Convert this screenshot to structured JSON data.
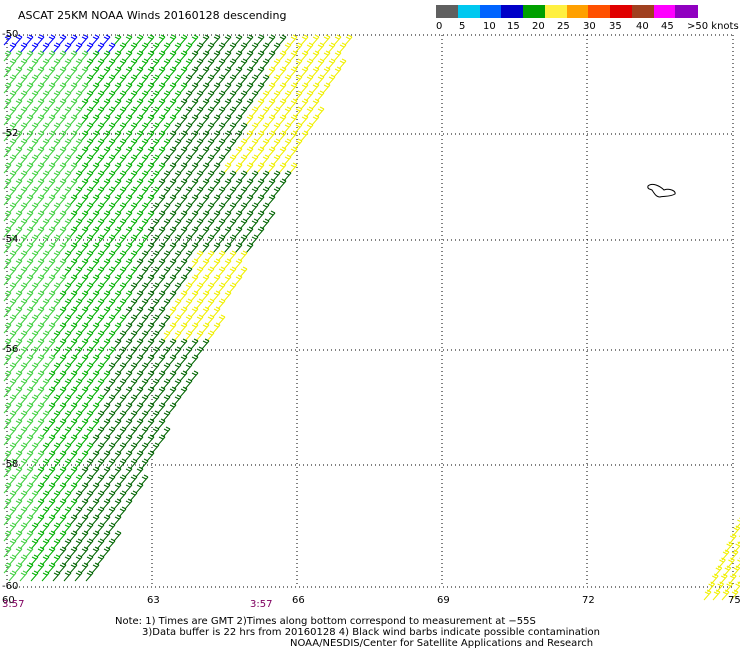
{
  "title": "ASCAT 25KM NOAA Winds 20160128 descending",
  "legend": {
    "labels": [
      "0",
      "5",
      "10",
      "15",
      "20",
      "25",
      "30",
      "35",
      "40",
      "45",
      ">50 knots"
    ],
    "colors": [
      "#606060",
      "#00c8f0",
      "#0064ff",
      "#0000c8",
      "#00a000",
      "#fff040",
      "#ffa000",
      "#ff5000",
      "#e00000",
      "#a04020",
      "#ff00ff",
      "#9000c0"
    ]
  },
  "axes": {
    "x_ticks": [
      "60",
      "63",
      "66",
      "69",
      "72",
      "75"
    ],
    "y_ticks": [
      "-50",
      "-52",
      "-54",
      "-56",
      "-58",
      "-60"
    ]
  },
  "times": [
    "3:57",
    "3:57"
  ],
  "notes": {
    "line1": "Note: 1) Times are GMT 2)Times along bottom correspond to measurement at −55S",
    "line2": "3)Data buffer is 22 hrs from 20160128 4) Black wind barbs indicate possible contamination",
    "line3": "NOAA/NESDIS/Center for Satellite Applications and Research"
  },
  "barb_colors": {
    "dark_green": "#006400",
    "green": "#00b000",
    "light_green": "#40d040",
    "yellow": "#f0f000",
    "blue": "#0000ff",
    "black": "#000000"
  }
}
